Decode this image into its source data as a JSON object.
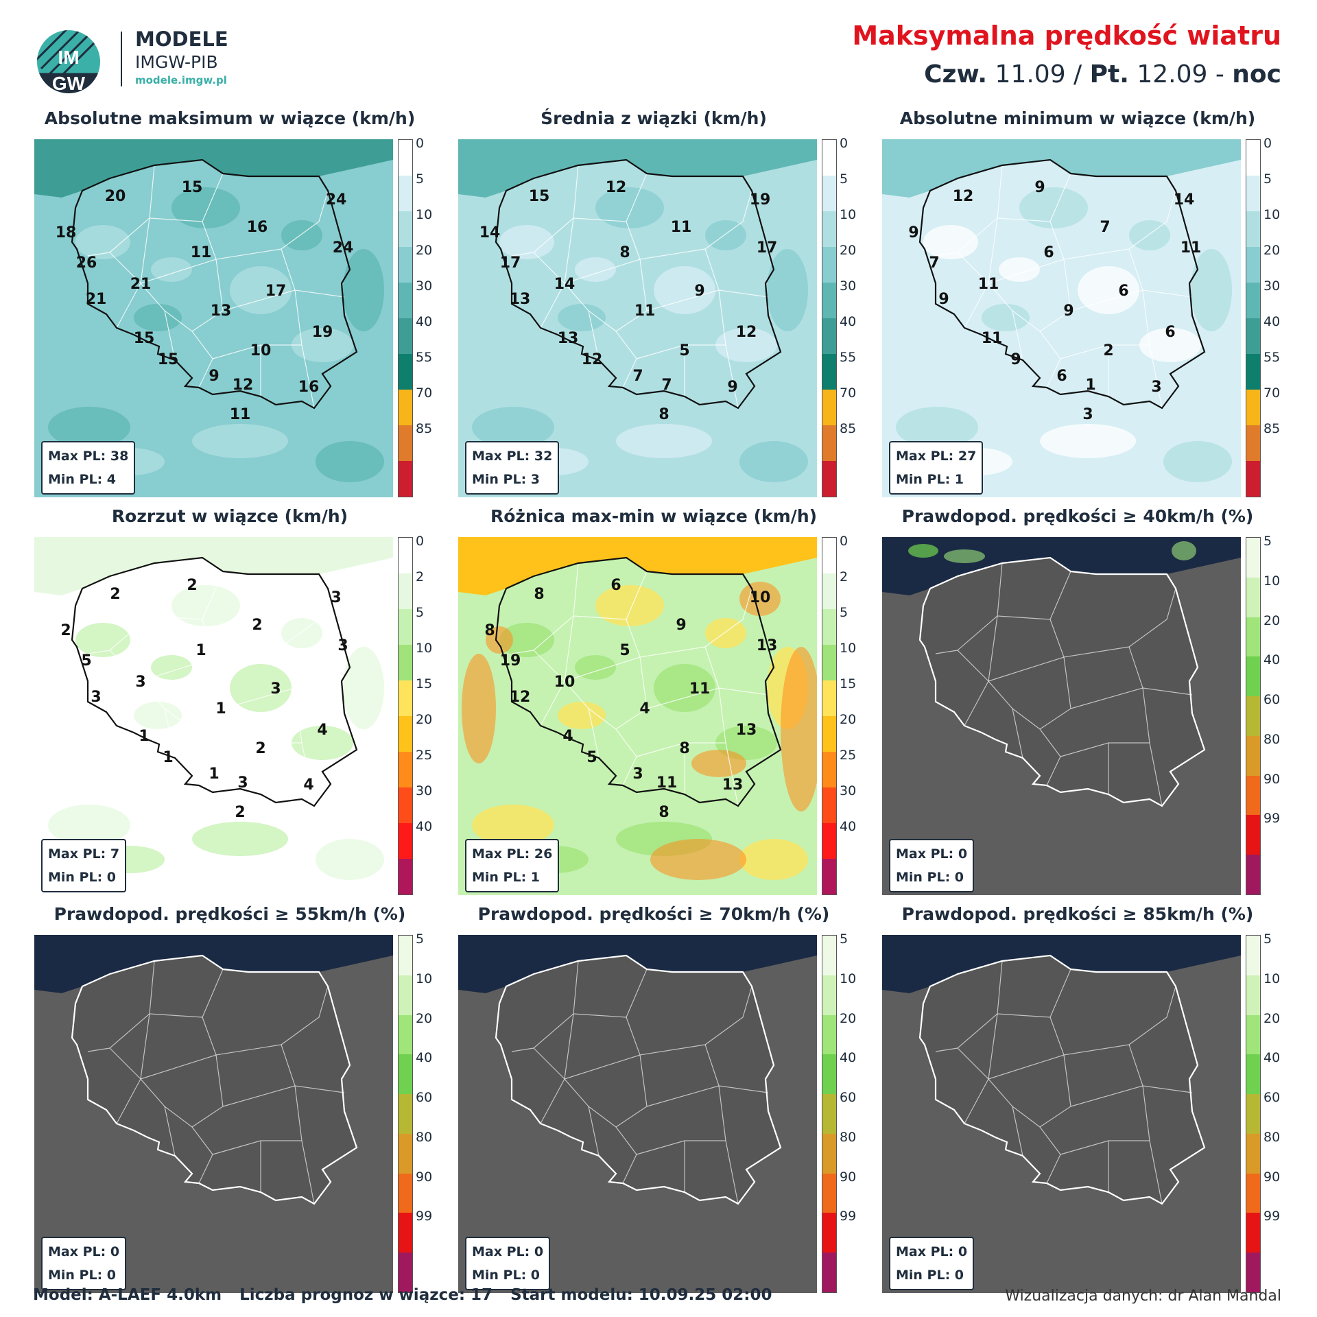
{
  "header": {
    "logo_text_top": "IM",
    "logo_text_bottom": "GW",
    "brand_title": "MODELE",
    "brand_sub": "IMGW-PIB",
    "brand_url": "modele.imgw.pl",
    "main_title": "Maksymalna prędkość wiatru",
    "sub_day1": "Czw.",
    "sub_date1": " 11.09 / ",
    "sub_day2": "Pt.",
    "sub_date2": " 12.09 - ",
    "sub_period": "noc"
  },
  "colors": {
    "speed_scale": [
      "#ffffff",
      "#d6eef4",
      "#b0dfe2",
      "#88cdd0",
      "#5fb7b4",
      "#3e9e96",
      "#0d7f6c",
      "#f7b51a",
      "#e07b2b",
      "#cc1e2e"
    ],
    "spread_scale": [
      "#ffffff",
      "#e6f9e0",
      "#c5f2b0",
      "#9fe37a",
      "#ffe35a",
      "#ffc21a",
      "#ff8c1a",
      "#ff4d1a",
      "#ff1a1a",
      "#b0175a"
    ],
    "prob_scale": [
      "#effae6",
      "#cff2b8",
      "#9fe57a",
      "#6fd14f",
      "#b6b834",
      "#d99a28",
      "#ef6a1a",
      "#e61414",
      "#a0195e"
    ],
    "sea_dark": "#1b2a44",
    "land_gray": "#5e5e5e",
    "border": "#111111"
  },
  "scales": {
    "speed": [
      "0",
      "5",
      "10",
      "20",
      "30",
      "40",
      "55",
      "70",
      "85"
    ],
    "spread": [
      "0",
      "2",
      "5",
      "10",
      "15",
      "20",
      "25",
      "30",
      "40"
    ],
    "prob": [
      "5",
      "10",
      "20",
      "40",
      "60",
      "80",
      "90",
      "99"
    ]
  },
  "panels": [
    {
      "title": "Absolutne maksimum w wiązce (km/h)",
      "max_label": "Max PL: 38",
      "min_label": "Min PL: 4",
      "labels": [
        "15",
        "20",
        "24",
        "18",
        "16",
        "24",
        "11",
        "26",
        "21",
        "21",
        "17",
        "13",
        "19",
        "15",
        "10",
        "15",
        "9",
        "12",
        "16",
        "11"
      ]
    },
    {
      "title": "Średnia z wiązki (km/h)",
      "max_label": "Max PL: 32",
      "min_label": "Min PL: 3",
      "labels": [
        "12",
        "15",
        "19",
        "14",
        "11",
        "17",
        "8",
        "17",
        "14",
        "13",
        "9",
        "11",
        "12",
        "13",
        "5",
        "12",
        "7",
        "7",
        "9",
        "8"
      ]
    },
    {
      "title": "Absolutne minimum w wiązce (km/h)",
      "max_label": "Max PL: 27",
      "min_label": "Min PL: 1",
      "labels": [
        "9",
        "12",
        "14",
        "9",
        "7",
        "11",
        "6",
        "7",
        "11",
        "9",
        "6",
        "9",
        "6",
        "11",
        "2",
        "9",
        "6",
        "1",
        "3",
        "3"
      ]
    },
    {
      "title": "Rozrzut w wiązce (km/h)",
      "max_label": "Max PL: 7",
      "min_label": "Min PL: 0",
      "labels": [
        "2",
        "2",
        "3",
        "2",
        "2",
        "3",
        "1",
        "5",
        "3",
        "3",
        "3",
        "1",
        "4",
        "1",
        "2",
        "1",
        "1",
        "3",
        "4",
        "2"
      ]
    },
    {
      "title": "Różnica max-min w wiązce (km/h)",
      "max_label": "Max PL: 26",
      "min_label": "Min PL: 1",
      "labels": [
        "6",
        "8",
        "10",
        "8",
        "9",
        "13",
        "5",
        "19",
        "10",
        "12",
        "11",
        "4",
        "13",
        "4",
        "8",
        "5",
        "3",
        "11",
        "13",
        "8"
      ]
    },
    {
      "title": "Prawdopod. prędkości ≥ 40km/h (%)",
      "max_label": "Max PL: 0",
      "min_label": "Min PL: 0"
    },
    {
      "title": "Prawdopod. prędkości ≥ 55km/h (%)",
      "max_label": "Max PL: 0",
      "min_label": "Min PL: 0"
    },
    {
      "title": "Prawdopod. prędkości ≥ 70km/h (%)",
      "max_label": "Max PL: 0",
      "min_label": "Min PL: 0"
    },
    {
      "title": "Prawdopod. prędkości ≥ 85km/h (%)",
      "max_label": "Max PL: 0",
      "min_label": "Min PL: 0"
    }
  ],
  "footer": {
    "model": "Model: A-LAEF 4.0km",
    "members": "Liczba prognoz w wiązce: 17",
    "start": "Start modelu: 10.09.25  02:00",
    "credit": "Wizualizacja danych: dr Alan Mandal"
  }
}
